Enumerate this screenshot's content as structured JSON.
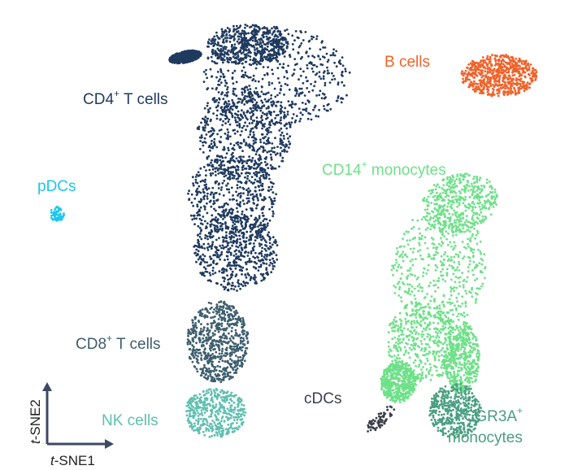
{
  "chart_data": {
    "type": "scatter",
    "title": "",
    "xlabel_prefix": "t",
    "xlabel_rest": "-SNE1",
    "ylabel_prefix": "t",
    "ylabel_rest": "-SNE2",
    "grid": false,
    "legend": "none",
    "clusters": [
      {
        "name": "CD4⁺ T cells",
        "label_main": "CD4",
        "label_sup": "+",
        "label_rest": " T cells",
        "color": "#1f3a5f",
        "n": 3200
      },
      {
        "name": "B cells",
        "label_main": "B cells",
        "label_sup": "",
        "label_rest": "",
        "color": "#f0622a",
        "n": 650
      },
      {
        "name": "pDCs",
        "label_main": "pDCs",
        "label_sup": "",
        "label_rest": "",
        "color": "#1cc6f0",
        "n": 60
      },
      {
        "name": "CD14⁺ monocytes",
        "label_main": "CD14",
        "label_sup": "+",
        "label_rest": " monocytes",
        "color": "#6fe08a",
        "n": 2300
      },
      {
        "name": "CD8⁺ T cells",
        "label_main": "CD8",
        "label_sup": "+",
        "label_rest": " T cells",
        "color": "#3d5e6e",
        "n": 700
      },
      {
        "name": "NK cells",
        "label_main": "NK cells",
        "label_sup": "",
        "label_rest": "",
        "color": "#5fbfb0",
        "n": 420
      },
      {
        "name": "cDCs",
        "label_main": "cDCs",
        "label_sup": "",
        "label_rest": "",
        "color": "#3c3f4a",
        "n": 70
      },
      {
        "name": "FCGR3A⁺ monocytes",
        "label_main": "FCGR3A",
        "label_sup": "+",
        "label_rest": "",
        "label_line2": "monocytes",
        "color": "#4a9f80",
        "n": 420
      }
    ]
  }
}
